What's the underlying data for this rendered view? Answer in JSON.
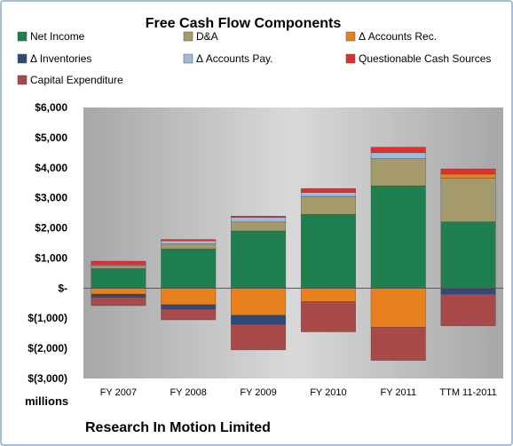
{
  "chart_data": {
    "type": "bar",
    "stacked": true,
    "title": "Free Cash Flow Components",
    "ylabel": "millions",
    "company": "Research In Motion Limited",
    "ylim": [
      -3000,
      6000
    ],
    "ytick_values": [
      -3000,
      -2000,
      -1000,
      0,
      1000,
      2000,
      3000,
      4000,
      5000,
      6000
    ],
    "ytick_labels": [
      "$(3,000)",
      "$(2,000)",
      "$(1,000)",
      "$-",
      "$1,000",
      "$2,000",
      "$3,000",
      "$4,000",
      "$5,000",
      "$6,000"
    ],
    "categories": [
      "FY 2007",
      "FY 2008",
      "FY 2009",
      "FY 2010",
      "FY 2011",
      "TTM 11-2011"
    ],
    "legend_placement": "top",
    "grid": false,
    "series": [
      {
        "name": "Net Income",
        "color": "#1f7f4f",
        "values": [
          650,
          1300,
          1900,
          2450,
          3400,
          2200
        ]
      },
      {
        "name": "D&A",
        "color": "#a59a6b",
        "values": [
          75,
          175,
          300,
          600,
          900,
          1450
        ]
      },
      {
        "name": "Δ Accounts Rec.",
        "color": "#e8811d",
        "values": [
          -200,
          -550,
          -900,
          -450,
          -1300,
          140
        ]
      },
      {
        "name": "Δ Inventories",
        "color": "#2d4a78",
        "values": [
          -100,
          -150,
          -300,
          0,
          0,
          -200
        ]
      },
      {
        "name": "Δ Accounts Pay.",
        "color": "#9fbbdc",
        "values": [
          40,
          100,
          150,
          130,
          200,
          0
        ]
      },
      {
        "name": "Questionable Cash Sources",
        "color": "#df2f2f",
        "values": [
          130,
          40,
          40,
          130,
          180,
          170
        ]
      },
      {
        "name": "Capital Expenditure",
        "color": "#a84a4a",
        "values": [
          -280,
          -350,
          -850,
          -1000,
          -1100,
          -1050
        ]
      }
    ]
  }
}
